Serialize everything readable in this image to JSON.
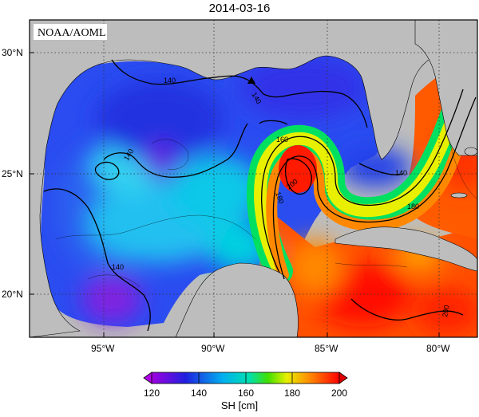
{
  "title": "2014-03-16",
  "credit": "NOAA/AOML",
  "colorbar": {
    "label": "SH [cm]",
    "ticks": [
      "120",
      "140",
      "160",
      "180",
      "200"
    ],
    "colors": [
      "#9a00e6",
      "#2b2be8",
      "#00c8f0",
      "#00e890",
      "#f0f000",
      "#ff8800",
      "#ff0000"
    ]
  },
  "axes": {
    "lat_labels": [
      "30°N",
      "25°N",
      "20°N"
    ],
    "lon_labels": [
      "95°W",
      "90°W",
      "85°W",
      "80°W"
    ]
  },
  "contour_labels": [
    "140",
    "140",
    "140",
    "160",
    "180",
    "180",
    "140",
    "200",
    "200",
    "140"
  ],
  "marker": {
    "name": "station-triangle"
  },
  "colors": {
    "land": "#bdbdbd",
    "frame": "#000000",
    "grid": "#333333"
  }
}
